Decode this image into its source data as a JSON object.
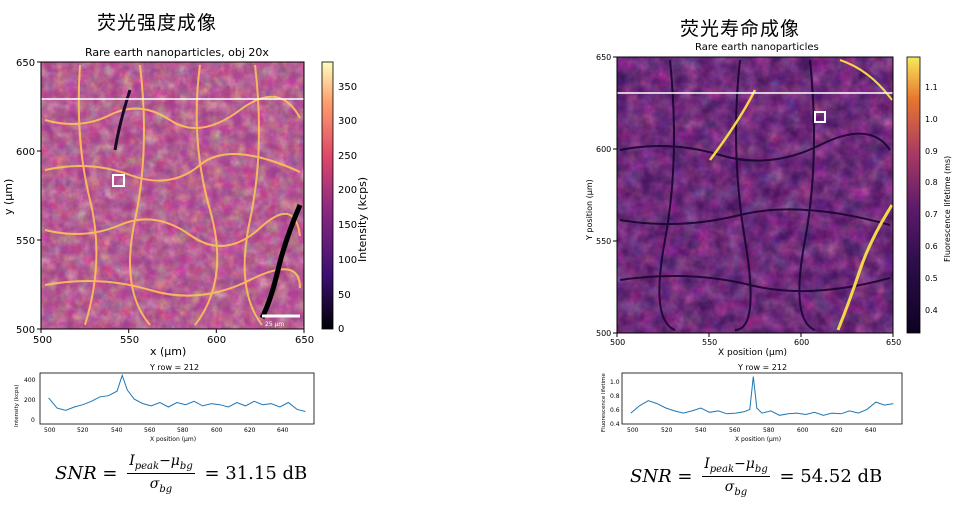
{
  "left": {
    "heading": "荧光强度成像",
    "image": {
      "title": "Rare earth nanoparticles, obj 20x",
      "xlabel": "x (μm)",
      "ylabel": "y (μm)",
      "xticks": [
        "500",
        "550",
        "600",
        "650"
      ],
      "yticks": [
        "650",
        "600",
        "550",
        "500"
      ],
      "colorbar_label": "Intensity (kcps)",
      "colorbar_ticks": [
        "350",
        "300",
        "250",
        "200",
        "150",
        "100",
        "50",
        "0"
      ],
      "scalebar": "25 μm",
      "colormap": [
        "#000004",
        "#3b0f70",
        "#8c2981",
        "#de4968",
        "#fe9f6d",
        "#fcfdbf"
      ]
    },
    "profile": {
      "title": "Y row = 212",
      "xlabel": "X position (μm)",
      "ylabel": "Intensity (kcps)",
      "xticks": [
        "500",
        "520",
        "540",
        "560",
        "580",
        "600",
        "620",
        "640"
      ],
      "yticks": [
        "400",
        "200",
        "0"
      ]
    },
    "snr": {
      "lhs": "SNR",
      "eq": "=",
      "num": "I",
      "num_sub": "peak",
      "num_minus": "−μ",
      "num_sub2": "bg",
      "den": "σ",
      "den_sub": "bg",
      "value": "= 31.15 dB"
    }
  },
  "right": {
    "heading": "荧光寿命成像",
    "image": {
      "title": "Rare earth nanoparticles",
      "xlabel": "X position (μm)",
      "ylabel": "Y position (μm)",
      "xticks": [
        "500",
        "550",
        "600",
        "650"
      ],
      "yticks": [
        "650",
        "600",
        "550",
        "500"
      ],
      "colorbar_label": "Fluorescence lifetime (ms)",
      "colorbar_ticks": [
        "1.1",
        "1.0",
        "0.9",
        "0.8",
        "0.7",
        "0.6",
        "0.5",
        "0.4"
      ],
      "colormap": [
        "#0d0221",
        "#2c0d4a",
        "#5c1a6b",
        "#a83a63",
        "#e8772e",
        "#f7e95b"
      ]
    },
    "profile": {
      "title": "Y row = 212",
      "xlabel": "X position (μm)",
      "ylabel": "Fluorescence lifetime",
      "xticks": [
        "500",
        "520",
        "540",
        "560",
        "580",
        "600",
        "620",
        "640"
      ],
      "yticks": [
        "1.0",
        "0.8",
        "0.6",
        "0.4"
      ]
    },
    "snr": {
      "lhs": "SNR",
      "eq": "=",
      "num": "I",
      "num_sub": "peak",
      "num_minus": "−μ",
      "num_sub2": "bg",
      "den": "σ",
      "den_sub": "bg",
      "value": "= 54.52 dB"
    }
  },
  "chart_data": [
    {
      "type": "heatmap",
      "title": "Rare earth nanoparticles, obj 20x",
      "xlabel": "x (μm)",
      "ylabel": "y (μm)",
      "xlim": [
        500,
        650
      ],
      "ylim": [
        500,
        650
      ],
      "colorbar": {
        "label": "Intensity (kcps)",
        "range": [
          0,
          380
        ]
      },
      "annotations": [
        "Y row line at y≈630",
        "square ROI near (544, 584)",
        "scale bar 25 μm"
      ]
    },
    {
      "type": "line",
      "title": "Y row = 212",
      "xlabel": "X position (μm)",
      "ylabel": "Intensity (kcps)",
      "xlim": [
        495,
        655
      ],
      "ylim": [
        0,
        450
      ],
      "x": [
        500,
        505,
        510,
        515,
        520,
        525,
        530,
        535,
        540,
        543,
        546,
        550,
        555,
        560,
        565,
        570,
        575,
        580,
        585,
        590,
        595,
        600,
        605,
        610,
        615,
        620,
        625,
        630,
        635,
        640,
        645,
        650
      ],
      "series": [
        {
          "values": [
            230,
            140,
            120,
            150,
            170,
            200,
            240,
            250,
            290,
            430,
            300,
            220,
            180,
            160,
            190,
            150,
            190,
            170,
            200,
            160,
            180,
            170,
            150,
            190,
            160,
            200,
            170,
            180,
            150,
            190,
            130,
            110
          ]
        }
      ]
    },
    {
      "type": "heatmap",
      "title": "Rare earth nanoparticles",
      "xlabel": "X position (μm)",
      "ylabel": "Y position (μm)",
      "xlim": [
        500,
        650
      ],
      "ylim": [
        500,
        650
      ],
      "colorbar": {
        "label": "Fluorescence lifetime (ms)",
        "range": [
          0.3,
          1.2
        ]
      },
      "annotations": [
        "Y row line at y≈630",
        "square ROI near (612, 618)"
      ]
    },
    {
      "type": "line",
      "title": "Y row = 212",
      "xlabel": "X position (μm)",
      "ylabel": "Fluorescence lifetime",
      "xlim": [
        495,
        655
      ],
      "ylim": [
        0.4,
        1.1
      ],
      "x": [
        500,
        505,
        510,
        515,
        520,
        525,
        530,
        535,
        540,
        545,
        550,
        555,
        560,
        565,
        568,
        570,
        572,
        575,
        580,
        585,
        590,
        595,
        600,
        605,
        610,
        615,
        620,
        625,
        630,
        635,
        640,
        645,
        650
      ],
      "series": [
        {
          "values": [
            0.55,
            0.65,
            0.72,
            0.68,
            0.62,
            0.58,
            0.55,
            0.58,
            0.62,
            0.56,
            0.58,
            0.54,
            0.55,
            0.57,
            0.6,
            1.05,
            0.62,
            0.55,
            0.58,
            0.52,
            0.54,
            0.55,
            0.53,
            0.56,
            0.52,
            0.55,
            0.54,
            0.58,
            0.55,
            0.6,
            0.7,
            0.66,
            0.68
          ]
        }
      ]
    }
  ]
}
